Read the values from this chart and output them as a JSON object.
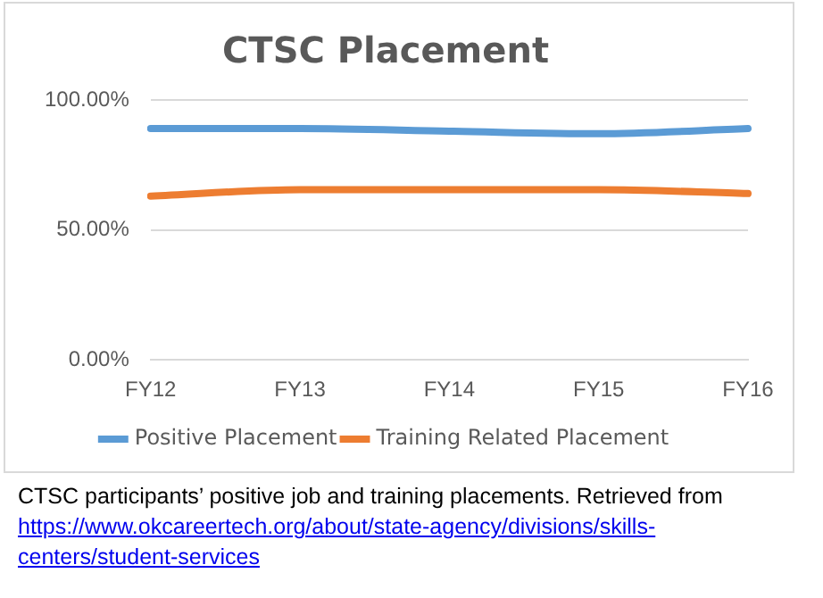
{
  "chart_data": {
    "type": "line",
    "title": "CTSC Placement",
    "categories": [
      "FY12",
      "FY13",
      "FY14",
      "FY15",
      "FY16"
    ],
    "series": [
      {
        "name": "Positive Placement",
        "color": "#5b9bd5",
        "values": [
          89,
          89,
          88,
          87,
          89
        ]
      },
      {
        "name": "Training Related Placement",
        "color": "#ed7d31",
        "values": [
          63,
          65.5,
          65.5,
          65.5,
          64
        ]
      }
    ],
    "ylim": [
      0,
      100
    ],
    "yticks": [
      {
        "value": 0,
        "label": "0.00%"
      },
      {
        "value": 50,
        "label": "50.00%"
      },
      {
        "value": 100,
        "label": "100.00%"
      }
    ],
    "grid": "y",
    "legend": "bottom",
    "marker": "none",
    "line_style": "solid",
    "annotations": [
      "CTSC participants’ positive job and training placements. Retrieved from",
      "https://www.okcareertech.org/about/state-agency/divisions/skills-centers/student-services"
    ]
  }
}
